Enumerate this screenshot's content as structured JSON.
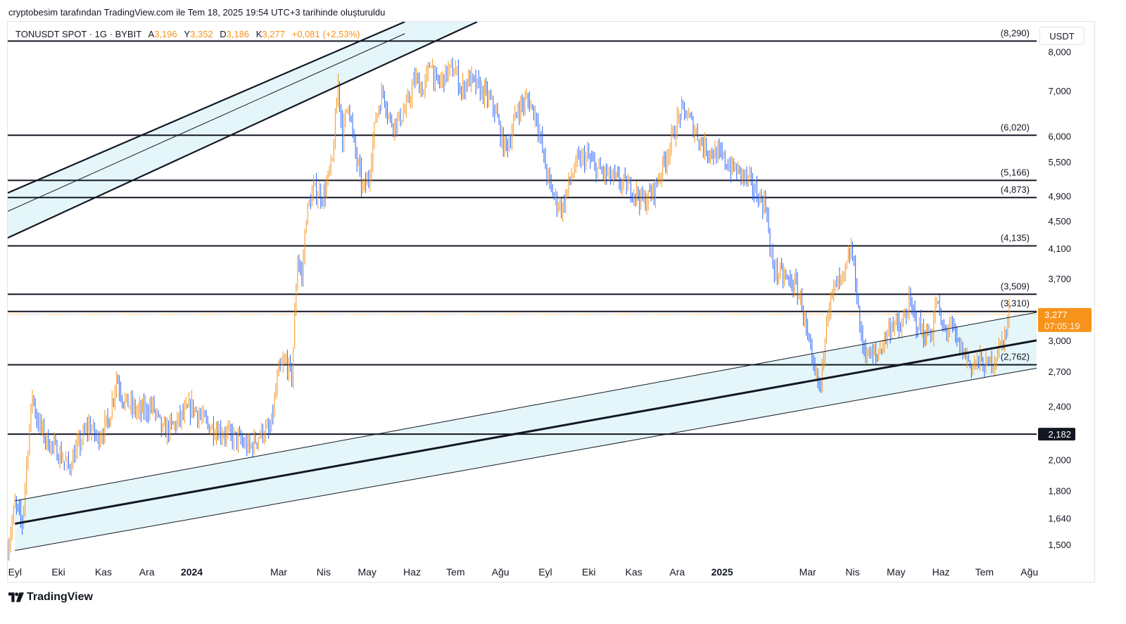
{
  "header": {
    "caption": "cryptobesim tarafından TradingView.com ile Tem 18, 2025 19:54 UTC+3 tarihinde oluşturuldu"
  },
  "legend": {
    "symbol": "TONUSDT SPOT · 1G · BYBIT",
    "open_label": "A",
    "open": "3,196",
    "high_label": "Y",
    "high": "3,352",
    "low_label": "D",
    "low": "3,186",
    "close_label": "K",
    "close": "3,277",
    "change": "+0,081 (+2,53%)"
  },
  "currency_button": "USDT",
  "brand": {
    "name": "TradingView"
  },
  "colors": {
    "up": "#f7931a",
    "down": "#2962ff",
    "channel_fill": "#dff4f8",
    "line": "#131722",
    "price_tag": "#f7931a",
    "level_tag": "#131722"
  },
  "chart_data": {
    "type": "candlestick",
    "y_scale": "log",
    "ylim": [
      1.42,
      8.85
    ],
    "y_ticks": [
      {
        "value": 8.0,
        "label": "8,000"
      },
      {
        "value": 7.0,
        "label": "7,000"
      },
      {
        "value": 6.0,
        "label": "6,000"
      },
      {
        "value": 5.5,
        "label": "5,500"
      },
      {
        "value": 4.9,
        "label": "4,900"
      },
      {
        "value": 4.5,
        "label": "4,500"
      },
      {
        "value": 4.1,
        "label": "4,100"
      },
      {
        "value": 3.7,
        "label": "3,700"
      },
      {
        "value": 3.0,
        "label": "3,000"
      },
      {
        "value": 2.7,
        "label": "2,700"
      },
      {
        "value": 2.4,
        "label": "2,400"
      },
      {
        "value": 2.0,
        "label": "2,000"
      },
      {
        "value": 1.8,
        "label": "1,800"
      },
      {
        "value": 1.64,
        "label": "1,640"
      },
      {
        "value": 1.5,
        "label": "1,500"
      }
    ],
    "x_ticks": [
      {
        "date": "2023-09-01",
        "label": "Eyl",
        "bold": false
      },
      {
        "date": "2023-10-01",
        "label": "Eki",
        "bold": false
      },
      {
        "date": "2023-11-01",
        "label": "Kas",
        "bold": false
      },
      {
        "date": "2023-12-01",
        "label": "Ara",
        "bold": false
      },
      {
        "date": "2024-01-01",
        "label": "2024",
        "bold": true
      },
      {
        "date": "2024-03-01",
        "label": "Mar",
        "bold": false
      },
      {
        "date": "2024-04-01",
        "label": "Nis",
        "bold": false
      },
      {
        "date": "2024-05-01",
        "label": "May",
        "bold": false
      },
      {
        "date": "2024-06-01",
        "label": "Haz",
        "bold": false
      },
      {
        "date": "2024-07-01",
        "label": "Tem",
        "bold": false
      },
      {
        "date": "2024-08-01",
        "label": "Ağu",
        "bold": false
      },
      {
        "date": "2024-09-01",
        "label": "Eyl",
        "bold": false
      },
      {
        "date": "2024-10-01",
        "label": "Eki",
        "bold": false
      },
      {
        "date": "2024-11-01",
        "label": "Kas",
        "bold": false
      },
      {
        "date": "2024-12-01",
        "label": "Ara",
        "bold": false
      },
      {
        "date": "2025-01-01",
        "label": "2025",
        "bold": true
      },
      {
        "date": "2025-03-01",
        "label": "Mar",
        "bold": false
      },
      {
        "date": "2025-04-01",
        "label": "Nis",
        "bold": false
      },
      {
        "date": "2025-05-01",
        "label": "May",
        "bold": false
      },
      {
        "date": "2025-06-01",
        "label": "Haz",
        "bold": false
      },
      {
        "date": "2025-07-01",
        "label": "Tem",
        "bold": false
      },
      {
        "date": "2025-08-01",
        "label": "Ağu",
        "bold": false
      }
    ],
    "horizontal_levels": [
      {
        "value": 8.29,
        "label": "(8,290)"
      },
      {
        "value": 6.02,
        "label": "(6,020)"
      },
      {
        "value": 5.166,
        "label": "(5,166)"
      },
      {
        "value": 4.873,
        "label": "(4,873)"
      },
      {
        "value": 4.135,
        "label": "(4,135)"
      },
      {
        "value": 3.509,
        "label": "(3,509)"
      },
      {
        "value": 3.31,
        "label": "(3,310)"
      },
      {
        "value": 2.762,
        "label": "(2,762)"
      },
      {
        "value": 2.182,
        "label": "2,182"
      }
    ],
    "last_price": {
      "value": 3.277,
      "label": "3,277",
      "countdown": "07:05:19"
    },
    "close_path": [
      [
        "2023-08-27",
        1.48
      ],
      [
        "2023-09-01",
        1.72
      ],
      [
        "2023-09-06",
        1.61
      ],
      [
        "2023-09-10",
        2.1
      ],
      [
        "2023-09-13",
        2.5
      ],
      [
        "2023-09-16",
        2.3
      ],
      [
        "2023-09-22",
        2.15
      ],
      [
        "2023-10-01",
        2.05
      ],
      [
        "2023-10-08",
        1.95
      ],
      [
        "2023-10-15",
        2.1
      ],
      [
        "2023-10-22",
        2.25
      ],
      [
        "2023-10-28",
        2.15
      ],
      [
        "2023-11-05",
        2.3
      ],
      [
        "2023-11-10",
        2.65
      ],
      [
        "2023-11-15",
        2.45
      ],
      [
        "2023-11-25",
        2.35
      ],
      [
        "2023-12-05",
        2.4
      ],
      [
        "2023-12-12",
        2.2
      ],
      [
        "2023-12-20",
        2.25
      ],
      [
        "2024-01-01",
        2.4
      ],
      [
        "2024-01-12",
        2.25
      ],
      [
        "2024-01-22",
        2.2
      ],
      [
        "2024-02-01",
        2.15
      ],
      [
        "2024-02-10",
        2.08
      ],
      [
        "2024-02-18",
        2.2
      ],
      [
        "2024-02-24",
        2.2
      ],
      [
        "2024-03-01",
        2.7
      ],
      [
        "2024-03-06",
        2.8
      ],
      [
        "2024-03-10",
        2.65
      ],
      [
        "2024-03-14",
        4.0
      ],
      [
        "2024-03-17",
        3.7
      ],
      [
        "2024-03-20",
        4.6
      ],
      [
        "2024-03-25",
        5.0
      ],
      [
        "2024-04-01",
        4.9
      ],
      [
        "2024-04-07",
        5.5
      ],
      [
        "2024-04-11",
        7.2
      ],
      [
        "2024-04-14",
        6.0
      ],
      [
        "2024-04-18",
        6.8
      ],
      [
        "2024-04-22",
        5.8
      ],
      [
        "2024-04-28",
        5.0
      ],
      [
        "2024-05-02",
        5.2
      ],
      [
        "2024-05-07",
        6.4
      ],
      [
        "2024-05-12",
        7.0
      ],
      [
        "2024-05-17",
        6.3
      ],
      [
        "2024-05-22",
        6.3
      ],
      [
        "2024-05-28",
        6.6
      ],
      [
        "2024-06-03",
        7.3
      ],
      [
        "2024-06-09",
        7.0
      ],
      [
        "2024-06-14",
        7.8
      ],
      [
        "2024-06-17",
        7.2
      ],
      [
        "2024-06-20",
        7.2
      ],
      [
        "2024-06-26",
        7.5
      ],
      [
        "2024-07-01",
        7.5
      ],
      [
        "2024-07-05",
        7.0
      ],
      [
        "2024-07-10",
        7.3
      ],
      [
        "2024-07-16",
        7.1
      ],
      [
        "2024-07-22",
        6.9
      ],
      [
        "2024-07-28",
        6.6
      ],
      [
        "2024-08-03",
        5.8
      ],
      [
        "2024-08-07",
        5.9
      ],
      [
        "2024-08-13",
        6.6
      ],
      [
        "2024-08-20",
        6.8
      ],
      [
        "2024-08-26",
        6.4
      ],
      [
        "2024-09-01",
        5.4
      ],
      [
        "2024-09-05",
        5.0
      ],
      [
        "2024-09-09",
        4.8
      ],
      [
        "2024-09-13",
        4.7
      ],
      [
        "2024-09-17",
        5.1
      ],
      [
        "2024-09-23",
        5.5
      ],
      [
        "2024-09-30",
        5.6
      ],
      [
        "2024-10-05",
        5.4
      ],
      [
        "2024-10-11",
        5.3
      ],
      [
        "2024-10-18",
        5.2
      ],
      [
        "2024-10-25",
        5.1
      ],
      [
        "2024-11-01",
        5.0
      ],
      [
        "2024-11-08",
        4.8
      ],
      [
        "2024-11-15",
        5.0
      ],
      [
        "2024-11-22",
        5.5
      ],
      [
        "2024-11-28",
        6.0
      ],
      [
        "2024-12-03",
        6.5
      ],
      [
        "2024-12-07",
        6.5
      ],
      [
        "2024-12-12",
        6.2
      ],
      [
        "2024-12-19",
        5.8
      ],
      [
        "2024-12-24",
        5.7
      ],
      [
        "2024-12-31",
        5.6
      ],
      [
        "2025-01-07",
        5.4
      ],
      [
        "2025-01-14",
        5.3
      ],
      [
        "2025-01-21",
        5.1
      ],
      [
        "2025-01-26",
        4.9
      ],
      [
        "2025-02-01",
        4.7
      ],
      [
        "2025-02-03",
        4.0
      ],
      [
        "2025-02-07",
        3.8
      ],
      [
        "2025-02-14",
        3.7
      ],
      [
        "2025-02-21",
        3.6
      ],
      [
        "2025-02-25",
        3.4
      ],
      [
        "2025-03-01",
        3.0
      ],
      [
        "2025-03-05",
        2.7
      ],
      [
        "2025-03-10",
        2.55
      ],
      [
        "2025-03-14",
        3.3
      ],
      [
        "2025-03-20",
        3.6
      ],
      [
        "2025-03-26",
        3.7
      ],
      [
        "2025-03-31",
        4.1
      ],
      [
        "2025-04-03",
        3.7
      ],
      [
        "2025-04-07",
        3.0
      ],
      [
        "2025-04-12",
        2.85
      ],
      [
        "2025-04-18",
        2.85
      ],
      [
        "2025-04-24",
        3.05
      ],
      [
        "2025-04-29",
        3.2
      ],
      [
        "2025-05-04",
        3.1
      ],
      [
        "2025-05-10",
        3.4
      ],
      [
        "2025-05-15",
        3.2
      ],
      [
        "2025-05-21",
        3.05
      ],
      [
        "2025-05-26",
        3.1
      ],
      [
        "2025-05-29",
        3.45
      ],
      [
        "2025-06-02",
        3.1
      ],
      [
        "2025-06-08",
        3.15
      ],
      [
        "2025-06-13",
        2.95
      ],
      [
        "2025-06-18",
        2.85
      ],
      [
        "2025-06-22",
        2.75
      ],
      [
        "2025-06-27",
        2.8
      ],
      [
        "2025-07-02",
        2.75
      ],
      [
        "2025-07-07",
        2.8
      ],
      [
        "2025-07-12",
        2.95
      ],
      [
        "2025-07-16",
        3.1
      ],
      [
        "2025-07-18",
        3.277
      ]
    ],
    "trendlines": [
      {
        "name": "upper channel outer",
        "from": [
          "2023-08-27",
          4.95
        ],
        "to": [
          "2024-05-27",
          8.85
        ]
      },
      {
        "name": "upper channel mid",
        "from": [
          "2023-08-27",
          4.65
        ],
        "to": [
          "2024-05-27",
          8.5
        ]
      },
      {
        "name": "upper channel inner",
        "from": [
          "2023-08-27",
          4.25
        ],
        "to": [
          "2024-07-16",
          8.85
        ]
      },
      {
        "name": "rising channel upper",
        "from": [
          "2023-09-01",
          1.74
        ],
        "to": [
          "2025-08-06",
          3.3
        ]
      },
      {
        "name": "rising channel mid",
        "from": [
          "2023-09-01",
          1.61
        ],
        "to": [
          "2025-08-06",
          3.0
        ]
      },
      {
        "name": "rising channel lower",
        "from": [
          "2023-09-01",
          1.47
        ],
        "to": [
          "2025-08-06",
          2.73
        ]
      }
    ]
  }
}
